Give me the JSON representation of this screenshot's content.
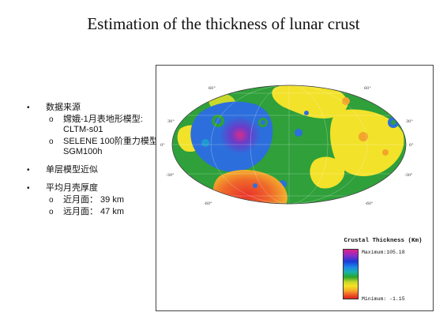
{
  "title": "Estimation of the thickness of lunar crust",
  "bullets": [
    {
      "text": "数据来源",
      "subs": [
        "嫦娥-1月表地形模型: CLTM-s01",
        "SELENE 100阶重力模型: SGM100h"
      ]
    },
    {
      "text": "单层模型近似",
      "subs": []
    },
    {
      "text": "平均月壳厚度",
      "subs": [
        "近月面： 39 km",
        "远月面： 47 km"
      ]
    }
  ],
  "map": {
    "lat_labels": [
      "60°",
      "30°",
      "0°",
      "-30°",
      "-60°"
    ],
    "lat_labels_right": [
      "60°",
      "30°",
      "0°",
      "-30°",
      "-60°"
    ]
  },
  "legend": {
    "title": "Crustal Thickness (Km)",
    "maximum": "Maximum:105.18",
    "minimum": "Minimum: -1.15"
  },
  "colors": {
    "green": "#2fa03a",
    "yellow": "#f2e22a",
    "blue": "#2c6fdc",
    "red": "#e53a28",
    "magenta": "#d62d8e"
  }
}
